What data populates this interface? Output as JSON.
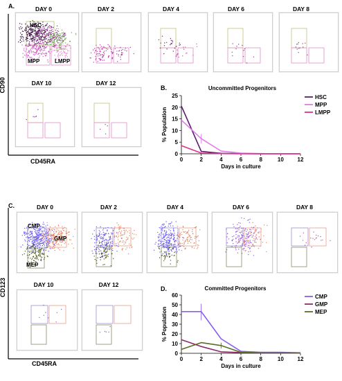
{
  "panels": {
    "a": {
      "letter": "A.",
      "days": [
        "DAY 0",
        "DAY 2",
        "DAY 4",
        "DAY 6",
        "DAY 8",
        "DAY 10",
        "DAY 12"
      ],
      "y_axis": "CD90",
      "x_axis": "CD45RA",
      "gate_labels": [
        "HSC",
        "MPP",
        "LMPP"
      ]
    },
    "b": {
      "letter": "B.",
      "title": "Uncommitted Progenitors"
    },
    "c": {
      "letter": "C.",
      "days": [
        "DAY 0",
        "DAY 2",
        "DAY 4",
        "DAY 6",
        "DAY 8",
        "DAY 10",
        "DAY 12"
      ],
      "y_axis": "CD123",
      "x_axis": "CD45RA",
      "gate_labels": [
        "CMP",
        "GMP",
        "MEP"
      ]
    },
    "d": {
      "letter": "D.",
      "title": "Committed Progenitors"
    }
  },
  "chart_data": [
    {
      "type": "line",
      "title": "Uncommitted Progenitors",
      "xlabel": "Days in culture",
      "ylabel": "% Population",
      "xlim": [
        0,
        12
      ],
      "ylim": [
        0,
        25
      ],
      "xticks": [
        0,
        2,
        4,
        6,
        8,
        10,
        12
      ],
      "yticks": [
        0,
        5,
        10,
        15,
        20,
        25
      ],
      "x": [
        0,
        2,
        4,
        6,
        8,
        10,
        12
      ],
      "legend": "top-right",
      "series": [
        {
          "name": "HSC",
          "color": "#5b1a6e",
          "values": [
            20.5,
            1.0,
            0.2,
            0.1,
            0.0,
            0.0,
            0.0
          ]
        },
        {
          "name": "MPP",
          "color": "#e07be6",
          "values": [
            14.5,
            6.5,
            1.2,
            0.3,
            0.1,
            0.0,
            0.0
          ]
        },
        {
          "name": "LMPP",
          "color": "#e0308a",
          "values": [
            3.5,
            0.3,
            0.1,
            0.0,
            0.0,
            0.0,
            0.0
          ]
        }
      ],
      "error_bars": [
        {
          "series": "MPP",
          "x": 2,
          "low": 4.5,
          "high": 8.5
        }
      ]
    },
    {
      "type": "line",
      "title": "Committed Progenitors",
      "xlabel": "Days in culture",
      "ylabel": "% Population",
      "xlim": [
        0,
        12
      ],
      "ylim": [
        0,
        60
      ],
      "xticks": [
        0,
        2,
        4,
        6,
        8,
        10,
        12
      ],
      "yticks": [
        0,
        10,
        20,
        30,
        40,
        50,
        60
      ],
      "x": [
        0,
        2,
        4,
        6,
        8,
        10,
        12
      ],
      "legend": "top-right",
      "series": [
        {
          "name": "CMP",
          "color": "#8a5cf0",
          "values": [
            43,
            43,
            15,
            2,
            1,
            1,
            0.5
          ]
        },
        {
          "name": "GMP",
          "color": "#8a2a6a",
          "values": [
            14,
            7,
            1.5,
            0.8,
            0.5,
            0.5,
            0.5
          ]
        },
        {
          "name": "MEP",
          "color": "#5a6e1f",
          "values": [
            4,
            11,
            8,
            1,
            0.5,
            0.5,
            0.3
          ]
        }
      ],
      "error_bars": [
        {
          "series": "CMP",
          "x": 2,
          "low": 34,
          "high": 51
        },
        {
          "series": "MEP",
          "x": 4,
          "low": 5,
          "high": 11
        }
      ]
    }
  ]
}
